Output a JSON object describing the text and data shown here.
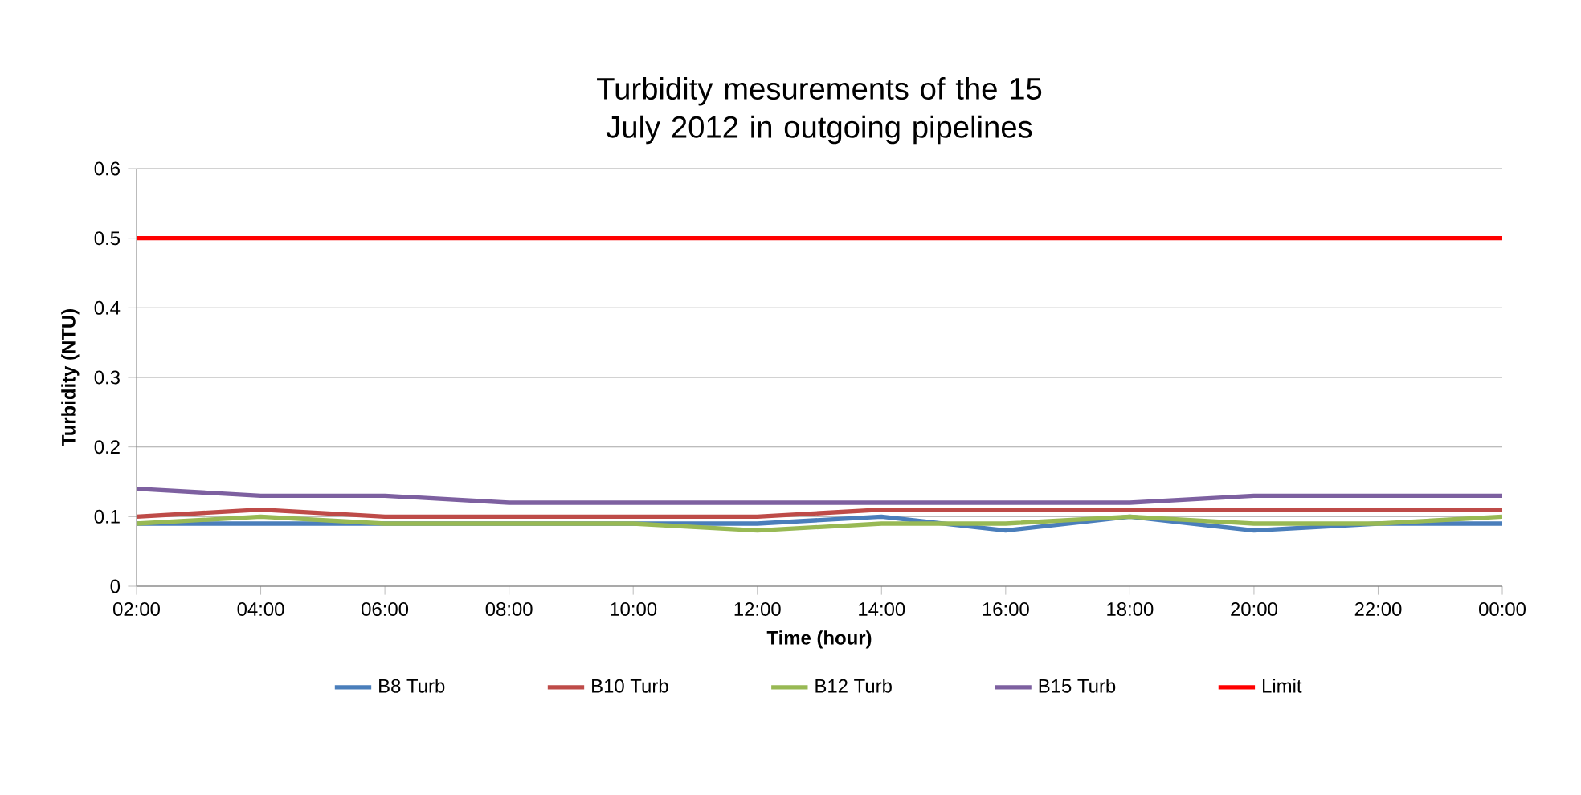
{
  "chart_data": {
    "type": "line",
    "title": "Turbidity mesurements of the 15 July 2012 in outgoing pipelines",
    "xlabel": "Time (hour)",
    "ylabel": "Turbidity (NTU)",
    "categories": [
      "02:00",
      "04:00",
      "06:00",
      "08:00",
      "10:00",
      "12:00",
      "14:00",
      "16:00",
      "18:00",
      "20:00",
      "22:00",
      "00:00"
    ],
    "series": [
      {
        "name": "B8 Turb",
        "color": "#4a7ebb",
        "values": [
          0.09,
          0.09,
          0.09,
          0.09,
          0.09,
          0.09,
          0.1,
          0.08,
          0.1,
          0.08,
          0.09,
          0.09
        ]
      },
      {
        "name": "B10 Turb",
        "color": "#be4b48",
        "values": [
          0.1,
          0.11,
          0.1,
          0.1,
          0.1,
          0.1,
          0.11,
          0.11,
          0.11,
          0.11,
          0.11,
          0.11
        ]
      },
      {
        "name": "B12 Turb",
        "color": "#98b954",
        "values": [
          0.09,
          0.1,
          0.09,
          0.09,
          0.09,
          0.08,
          0.09,
          0.09,
          0.1,
          0.09,
          0.09,
          0.1
        ]
      },
      {
        "name": "B15 Turb",
        "color": "#7d60a0",
        "values": [
          0.14,
          0.13,
          0.13,
          0.12,
          0.12,
          0.12,
          0.12,
          0.12,
          0.12,
          0.13,
          0.13,
          0.13
        ]
      },
      {
        "name": "Limit",
        "color": "#ff0000",
        "values": [
          0.5,
          0.5,
          0.5,
          0.5,
          0.5,
          0.5,
          0.5,
          0.5,
          0.5,
          0.5,
          0.5,
          0.5
        ]
      }
    ],
    "ylim": [
      0,
      0.6
    ],
    "yticks": [
      0,
      0.1,
      0.2,
      0.3,
      0.4,
      0.5,
      0.6
    ],
    "grid": "y",
    "legend": "bottom",
    "marker": "none",
    "line_style": "solid"
  }
}
